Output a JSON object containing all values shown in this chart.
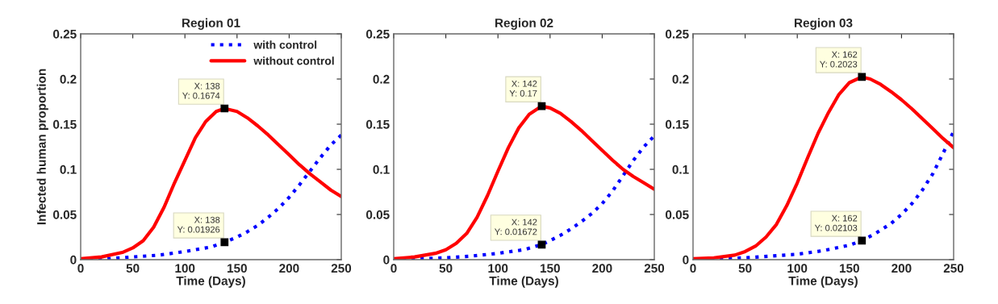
{
  "chart_data": [
    {
      "type": "line",
      "title": "Region 01",
      "xlabel": "Time (Days)",
      "ylabel": "Infected human proportion",
      "xlim": [
        0,
        250
      ],
      "ylim": [
        0,
        0.25
      ],
      "xticks": [
        0,
        50,
        100,
        150,
        200,
        250
      ],
      "yticks": [
        0,
        0.05,
        0.1,
        0.15,
        0.2,
        0.25
      ],
      "grid": false,
      "legend": "top right",
      "series": [
        {
          "name": "with control",
          "color": "#0000ff",
          "line_style": "dotted",
          "x": [
            0,
            25,
            50,
            75,
            100,
            125,
            138,
            150,
            160,
            170,
            180,
            190,
            200,
            210,
            220,
            230,
            240,
            250
          ],
          "values": [
            0.0005,
            0.001,
            0.003,
            0.005,
            0.009,
            0.014,
            0.01926,
            0.025,
            0.031,
            0.038,
            0.047,
            0.057,
            0.069,
            0.083,
            0.098,
            0.113,
            0.127,
            0.138
          ]
        },
        {
          "name": "without control",
          "color": "#ff0000",
          "line_style": "solid",
          "x": [
            0,
            20,
            40,
            50,
            60,
            70,
            80,
            90,
            100,
            110,
            120,
            130,
            138,
            150,
            160,
            170,
            180,
            190,
            200,
            210,
            220,
            230,
            240,
            250
          ],
          "values": [
            0.001,
            0.003,
            0.008,
            0.013,
            0.021,
            0.036,
            0.058,
            0.085,
            0.11,
            0.135,
            0.153,
            0.164,
            0.1674,
            0.164,
            0.157,
            0.148,
            0.138,
            0.127,
            0.116,
            0.105,
            0.095,
            0.086,
            0.077,
            0.07
          ]
        }
      ],
      "annotations": [
        {
          "text": "X: 138\nY: 0.1674",
          "x": 138,
          "y": 0.1674
        },
        {
          "text": "X: 138\nY: 0.01926",
          "x": 138,
          "y": 0.01926
        }
      ]
    },
    {
      "type": "line",
      "title": "Region 02",
      "xlabel": "Time (Days)",
      "xlim": [
        0,
        250
      ],
      "ylim": [
        0,
        0.25
      ],
      "xticks": [
        0,
        50,
        100,
        150,
        200,
        250
      ],
      "yticks": [
        0,
        0.05,
        0.1,
        0.15,
        0.2,
        0.25
      ],
      "grid": false,
      "series": [
        {
          "color": "#0000ff",
          "line_style": "dotted",
          "x": [
            0,
            25,
            50,
            75,
            100,
            125,
            142,
            150,
            160,
            170,
            180,
            190,
            200,
            210,
            220,
            230,
            240,
            250
          ],
          "values": [
            0.0005,
            0.001,
            0.002,
            0.004,
            0.007,
            0.011,
            0.01672,
            0.021,
            0.027,
            0.034,
            0.042,
            0.051,
            0.062,
            0.076,
            0.093,
            0.11,
            0.125,
            0.137
          ]
        },
        {
          "color": "#ff0000",
          "line_style": "solid",
          "x": [
            0,
            20,
            40,
            50,
            60,
            70,
            80,
            90,
            100,
            110,
            120,
            130,
            142,
            150,
            160,
            170,
            180,
            190,
            200,
            210,
            220,
            230,
            240,
            250
          ],
          "values": [
            0.001,
            0.003,
            0.007,
            0.011,
            0.018,
            0.029,
            0.047,
            0.071,
            0.098,
            0.124,
            0.146,
            0.161,
            0.17,
            0.168,
            0.162,
            0.153,
            0.143,
            0.132,
            0.121,
            0.11,
            0.1,
            0.092,
            0.085,
            0.078
          ]
        }
      ],
      "annotations": [
        {
          "text": "X: 142\nY: 0.17",
          "x": 142,
          "y": 0.17
        },
        {
          "text": "X: 142\nY: 0.01672",
          "x": 142,
          "y": 0.01672
        }
      ]
    },
    {
      "type": "line",
      "title": "Region 03",
      "xlabel": "Time (Days)",
      "xlim": [
        0,
        250
      ],
      "ylim": [
        0,
        0.25
      ],
      "xticks": [
        0,
        50,
        100,
        150,
        200,
        250
      ],
      "yticks": [
        0,
        0.05,
        0.1,
        0.15,
        0.2,
        0.25
      ],
      "grid": false,
      "series": [
        {
          "color": "#0000ff",
          "line_style": "dotted",
          "x": [
            0,
            25,
            50,
            75,
            100,
            125,
            150,
            162,
            175,
            190,
            200,
            210,
            220,
            230,
            240,
            250
          ],
          "values": [
            0.0005,
            0.001,
            0.002,
            0.004,
            0.006,
            0.01,
            0.016,
            0.02103,
            0.029,
            0.04,
            0.05,
            0.062,
            0.077,
            0.095,
            0.118,
            0.142
          ]
        },
        {
          "color": "#ff0000",
          "line_style": "solid",
          "x": [
            0,
            20,
            40,
            50,
            60,
            70,
            80,
            90,
            100,
            110,
            120,
            130,
            140,
            150,
            162,
            170,
            180,
            190,
            200,
            210,
            220,
            230,
            240,
            250
          ],
          "values": [
            0.001,
            0.002,
            0.005,
            0.009,
            0.015,
            0.025,
            0.039,
            0.06,
            0.085,
            0.113,
            0.14,
            0.163,
            0.183,
            0.196,
            0.2023,
            0.2,
            0.194,
            0.186,
            0.177,
            0.167,
            0.156,
            0.145,
            0.134,
            0.124
          ]
        }
      ],
      "annotations": [
        {
          "text": "X: 162\nY: 0.2023",
          "x": 162,
          "y": 0.2023
        },
        {
          "text": "X: 162\nY: 0.02103",
          "x": 162,
          "y": 0.02103
        }
      ]
    }
  ]
}
